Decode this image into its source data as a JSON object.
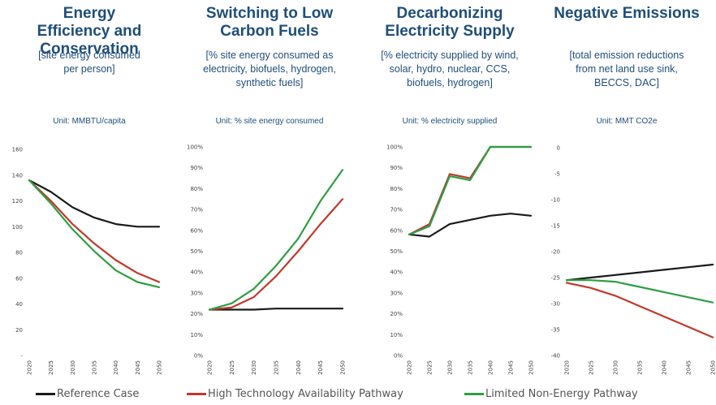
{
  "chart_data": [
    {
      "type": "line",
      "title": "Energy Efficiency and Conservation",
      "subtitle": "[site energy consumed per person]",
      "unit": "Unit: MMBTU/capita",
      "x": [
        "2020",
        "2025",
        "2030",
        "2035",
        "2040",
        "2045",
        "2050"
      ],
      "ylim": [
        0,
        160
      ],
      "yticks": [
        "-",
        "20",
        "40",
        "60",
        "80",
        "100",
        "120",
        "140",
        "160"
      ],
      "series": [
        {
          "name": "Reference Case",
          "color": "#1a1a1a",
          "values": [
            136,
            127,
            115,
            107,
            102,
            100,
            100
          ]
        },
        {
          "name": "High Technology Availability Pathway",
          "color": "#c0392b",
          "values": [
            136,
            120,
            102,
            87,
            74,
            64,
            57
          ]
        },
        {
          "name": "Limited Non-Energy Pathway",
          "color": "#2e9e44",
          "values": [
            136,
            118,
            98,
            81,
            66,
            57,
            53
          ]
        }
      ]
    },
    {
      "type": "line",
      "title": "Switching to Low Carbon Fuels",
      "subtitle": "[% site energy consumed as electricity, biofuels, hydrogen, synthetic fuels]",
      "unit": "Unit: % site energy consumed",
      "x": [
        "2020",
        "2025",
        "2030",
        "2035",
        "2040",
        "2045",
        "2050"
      ],
      "ylim": [
        0,
        100
      ],
      "yticks": [
        "0%",
        "10%",
        "20%",
        "30%",
        "40%",
        "50%",
        "60%",
        "70%",
        "80%",
        "90%",
        "100%"
      ],
      "series": [
        {
          "name": "Reference Case",
          "color": "#1a1a1a",
          "values": [
            22,
            22,
            22,
            22.5,
            22.5,
            22.5,
            22.5
          ]
        },
        {
          "name": "High Technology Availability Pathway",
          "color": "#c0392b",
          "values": [
            22,
            23,
            28,
            38,
            50,
            63,
            75
          ]
        },
        {
          "name": "Limited Non-Energy Pathway",
          "color": "#2e9e44",
          "values": [
            22,
            25,
            32,
            43,
            56,
            74,
            89
          ]
        }
      ]
    },
    {
      "type": "line",
      "title": "Decarbonizing Electricity Supply",
      "subtitle": "[% electricity supplied by wind, solar, hydro, nuclear, CCS, biofuels, hydrogen]",
      "unit": "Unit: % electricity supplied",
      "x": [
        "2020",
        "2025",
        "2030",
        "2035",
        "2040",
        "2045",
        "2050"
      ],
      "ylim": [
        0,
        100
      ],
      "yticks": [
        "0%",
        "10%",
        "20%",
        "30%",
        "40%",
        "50%",
        "60%",
        "70%",
        "80%",
        "90%",
        "100%"
      ],
      "series": [
        {
          "name": "Reference Case",
          "color": "#1a1a1a",
          "values": [
            58,
            57,
            63,
            65,
            67,
            68,
            67
          ]
        },
        {
          "name": "High Technology Availability Pathway",
          "color": "#c0392b",
          "values": [
            58,
            63,
            87,
            85,
            100,
            100,
            100
          ]
        },
        {
          "name": "Limited Non-Energy Pathway",
          "color": "#2e9e44",
          "values": [
            58,
            62,
            86,
            84,
            100,
            100,
            100
          ]
        }
      ]
    },
    {
      "type": "line",
      "title": "Negative Emissions",
      "subtitle": "[total emission reductions from net land use sink, BECCS, DAC]",
      "unit": "Unit: MMT CO2e",
      "x": [
        "2020",
        "2025",
        "2030",
        "2035",
        "2040",
        "2045",
        "2050"
      ],
      "ylim": [
        -40,
        0
      ],
      "yticks": [
        "0",
        "-5",
        "-10",
        "-15",
        "-20",
        "-25",
        "-30",
        "-35",
        "-40"
      ],
      "series": [
        {
          "name": "Reference Case",
          "color": "#1a1a1a",
          "values": [
            -25.5,
            -25,
            -24.5,
            -24,
            -23.5,
            -23,
            -22.5
          ]
        },
        {
          "name": "High Technology Availability Pathway",
          "color": "#c0392b",
          "values": [
            -26,
            -27,
            -28.5,
            -30.5,
            -32.5,
            -34.5,
            -36.5
          ]
        },
        {
          "name": "Limited Non-Energy Pathway",
          "color": "#2e9e44",
          "values": [
            -25.5,
            -25.5,
            -25.8,
            -26.8,
            -27.8,
            -28.8,
            -29.8
          ]
        }
      ]
    }
  ],
  "legend": [
    {
      "label": "Reference Case",
      "color": "#1a1a1a"
    },
    {
      "label": "High Technology Availability Pathway",
      "color": "#c0392b"
    },
    {
      "label": "Limited Non-Energy Pathway",
      "color": "#2e9e44"
    }
  ]
}
